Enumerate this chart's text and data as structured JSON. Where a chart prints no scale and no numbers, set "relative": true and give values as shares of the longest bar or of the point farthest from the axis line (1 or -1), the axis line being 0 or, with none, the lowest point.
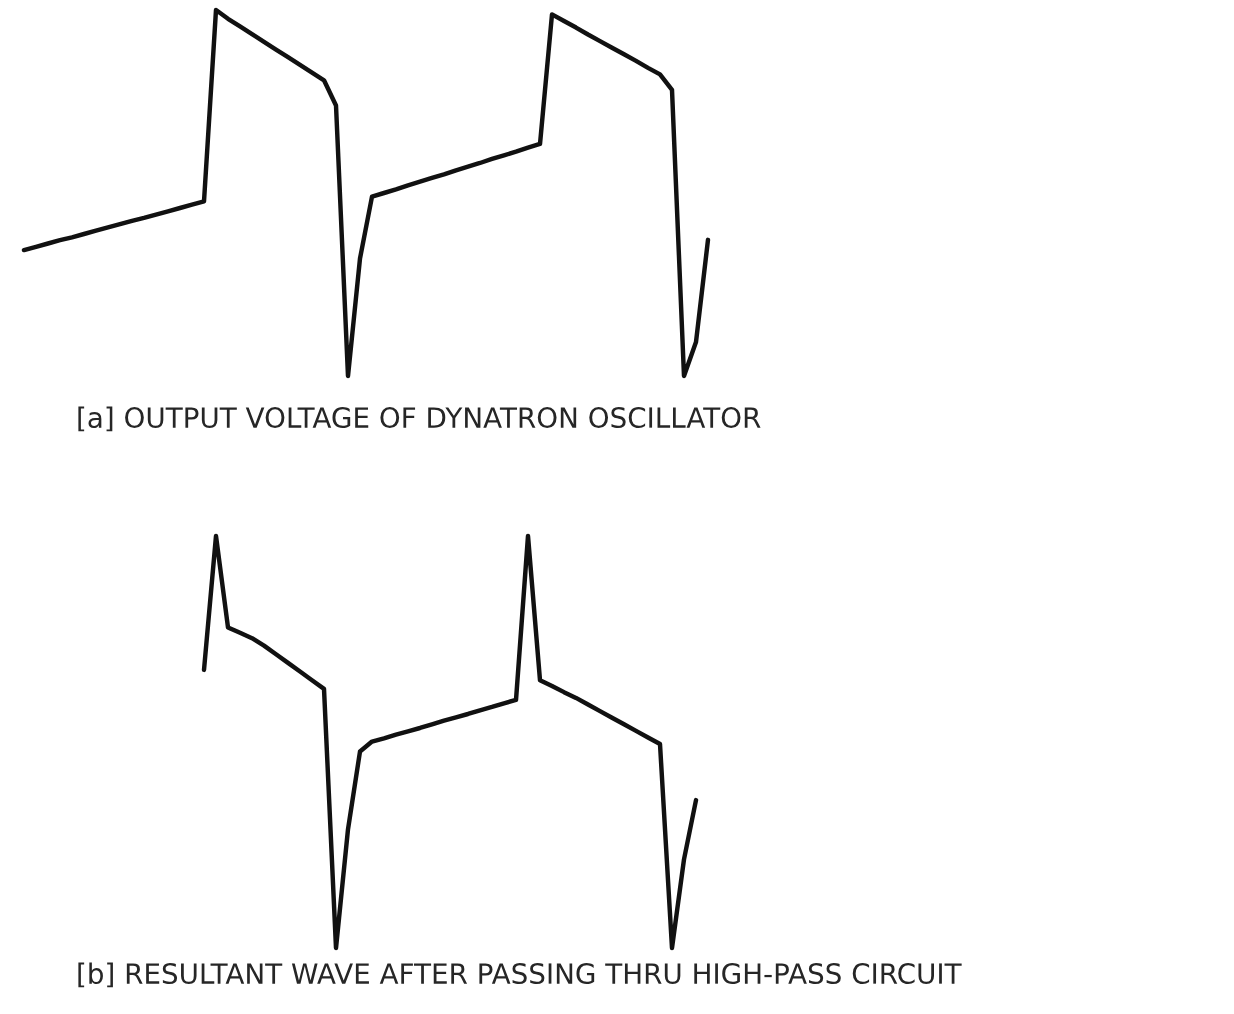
{
  "chart_data": [
    {
      "type": "line",
      "relative": true,
      "xlabel": "[a] OUTPUT VOLTAGE OF DYNATRON OSCILLATOR",
      "line_style": "solid",
      "categories": [
        null,
        null,
        null,
        null,
        null,
        null,
        null,
        null,
        null,
        null,
        null,
        null,
        null,
        null,
        null,
        null,
        null,
        null,
        null,
        null,
        null,
        null,
        null,
        null,
        null,
        null,
        null,
        null,
        null,
        null,
        null,
        null,
        null,
        null,
        null,
        null,
        null,
        null,
        null,
        null,
        null,
        null,
        null,
        null,
        null,
        null,
        null,
        null,
        null,
        null,
        null,
        null,
        null,
        null,
        null,
        null,
        null,
        null
      ],
      "series": [
        {
          "color": "#111111",
          "values": [
            0.344,
            0.353,
            0.362,
            0.371,
            0.379,
            0.388,
            0.397,
            0.406,
            0.415,
            0.424,
            0.432,
            0.441,
            0.45,
            0.459,
            0.468,
            0.477,
            1,
            0.976,
            0.955,
            0.934,
            0.913,
            0.892,
            0.871,
            0.85,
            0.829,
            0.808,
            0.739,
            0,
            0.321,
            0.49,
            0.5,
            0.51,
            0.521,
            0.531,
            0.541,
            0.551,
            0.562,
            0.572,
            0.582,
            0.593,
            0.603,
            0.613,
            0.624,
            0.634,
            0.988,
            0.97,
            0.952,
            0.933,
            0.915,
            0.897,
            0.879,
            0.861,
            0.842,
            0.824,
            0.782,
            0,
            0.093,
            0.372
          ]
        }
      ]
    },
    {
      "type": "line",
      "relative": true,
      "xlabel": "[b] RESULTANT WAVE AFTER PASSING THRU HIGH-PASS CIRCUIT",
      "line_style": "solid",
      "categories": [
        null,
        null,
        null,
        null,
        null,
        null,
        null,
        null,
        null,
        null,
        null,
        null,
        null,
        null,
        null,
        null,
        null,
        null,
        null,
        null,
        null,
        null,
        null,
        null,
        null,
        null,
        null,
        null,
        null,
        null,
        null,
        null,
        null,
        null,
        null,
        null,
        null,
        null,
        null,
        null,
        null,
        null
      ],
      "series": [
        {
          "color": "#111111",
          "values": [
            0.675,
            1,
            0.778,
            0.765,
            0.752,
            0.734,
            0.713,
            0.692,
            0.671,
            0.65,
            0.629,
            0,
            0.288,
            0.477,
            0.501,
            0.509,
            0.518,
            0.526,
            0.534,
            0.543,
            0.552,
            0.56,
            0.568,
            0.577,
            0.585,
            0.594,
            0.602,
            1,
            0.65,
            0.636,
            0.621,
            0.607,
            0.591,
            0.575,
            0.559,
            0.543,
            0.527,
            0.511,
            0.495,
            0,
            0.215,
            0.359
          ]
        }
      ]
    }
  ]
}
